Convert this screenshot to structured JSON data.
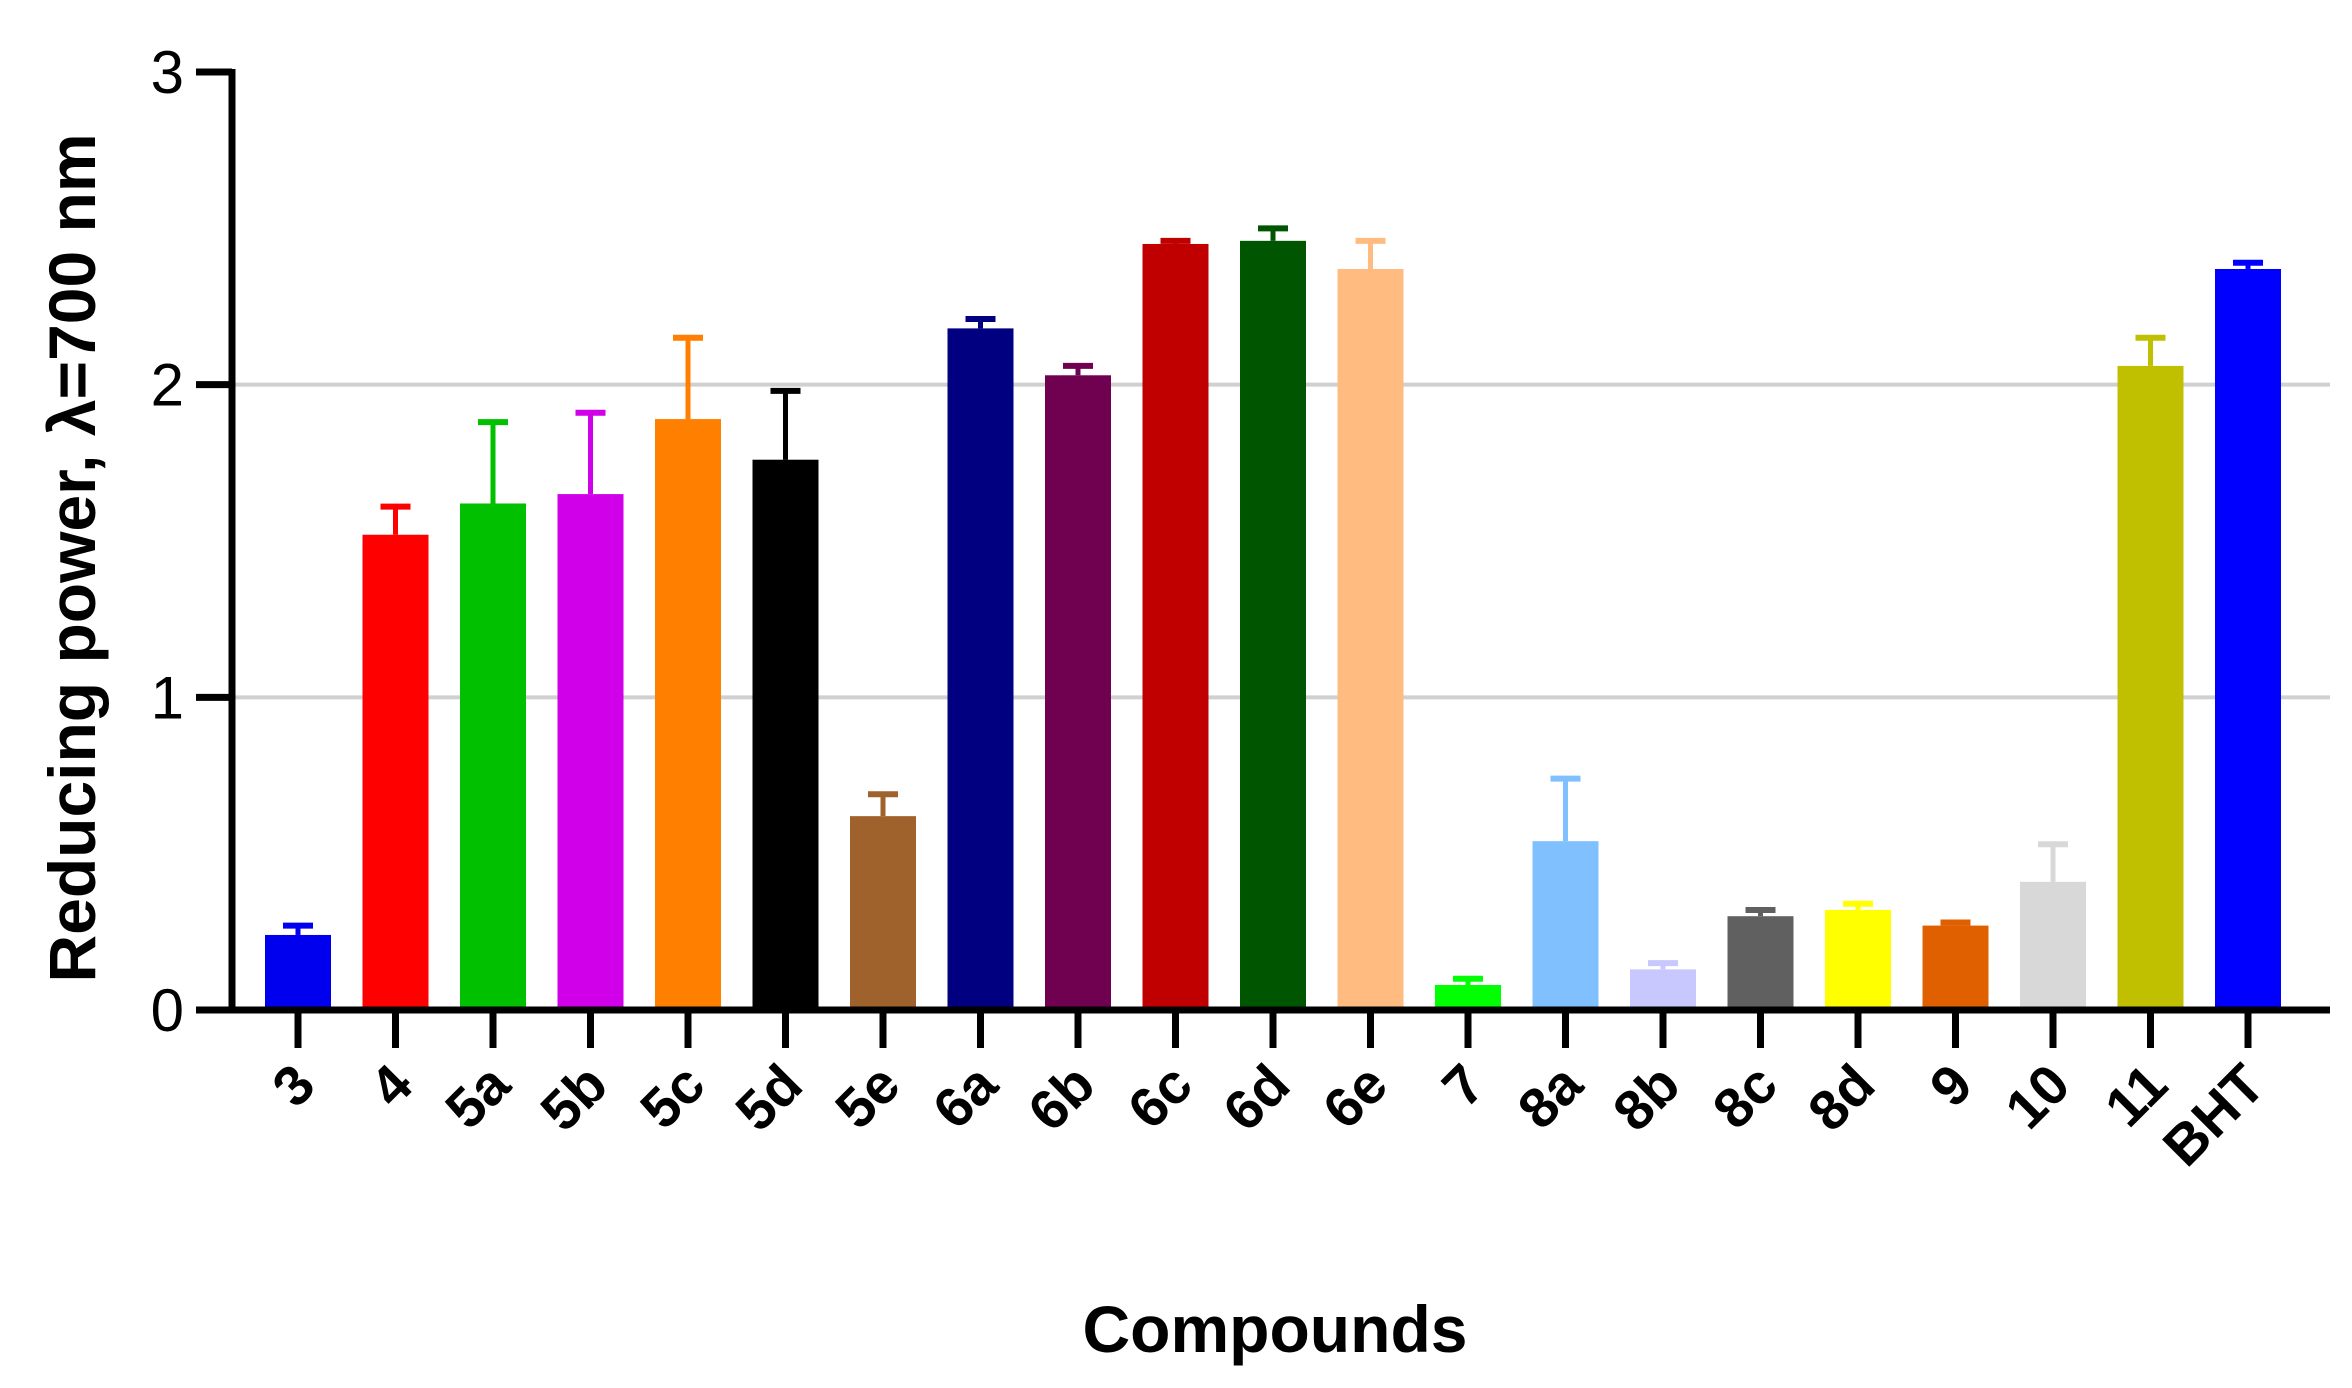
{
  "chart_data": {
    "type": "bar",
    "title": "",
    "xlabel": "Compounds",
    "ylabel": "Reducing power, λ=700 nm",
    "ylim": [
      0,
      3
    ],
    "yticks": [
      "0",
      "1",
      "2",
      "3"
    ],
    "grid": "horizontal at 1 and 2",
    "legend": "none",
    "categories": [
      "3",
      "4",
      "5a",
      "5b",
      "5c",
      "5d",
      "5e",
      "6a",
      "6b",
      "6c",
      "6d",
      "6e",
      "7",
      "8a",
      "8b",
      "8c",
      "8d",
      "9",
      "10",
      "11",
      "BHT"
    ],
    "values": [
      0.24,
      1.52,
      1.62,
      1.65,
      1.89,
      1.76,
      0.62,
      2.18,
      2.03,
      2.45,
      2.46,
      2.37,
      0.08,
      0.54,
      0.13,
      0.3,
      0.32,
      0.27,
      0.41,
      2.06,
      2.37
    ],
    "errors": [
      0.03,
      0.09,
      0.26,
      0.26,
      0.26,
      0.22,
      0.07,
      0.03,
      0.03,
      0.01,
      0.04,
      0.09,
      0.02,
      0.2,
      0.02,
      0.02,
      0.02,
      0.01,
      0.12,
      0.09,
      0.02
    ],
    "colors": [
      "#0000ee",
      "#ff0000",
      "#00c000",
      "#d000e8",
      "#ff8000",
      "#000000",
      "#a0622c",
      "#000080",
      "#700050",
      "#c00000",
      "#005500",
      "#ffbb80",
      "#00ff00",
      "#80c0ff",
      "#c8c8ff",
      "#606060",
      "#ffff00",
      "#e06000",
      "#d8d8d8",
      "#c0c000",
      "#0000ff"
    ]
  }
}
